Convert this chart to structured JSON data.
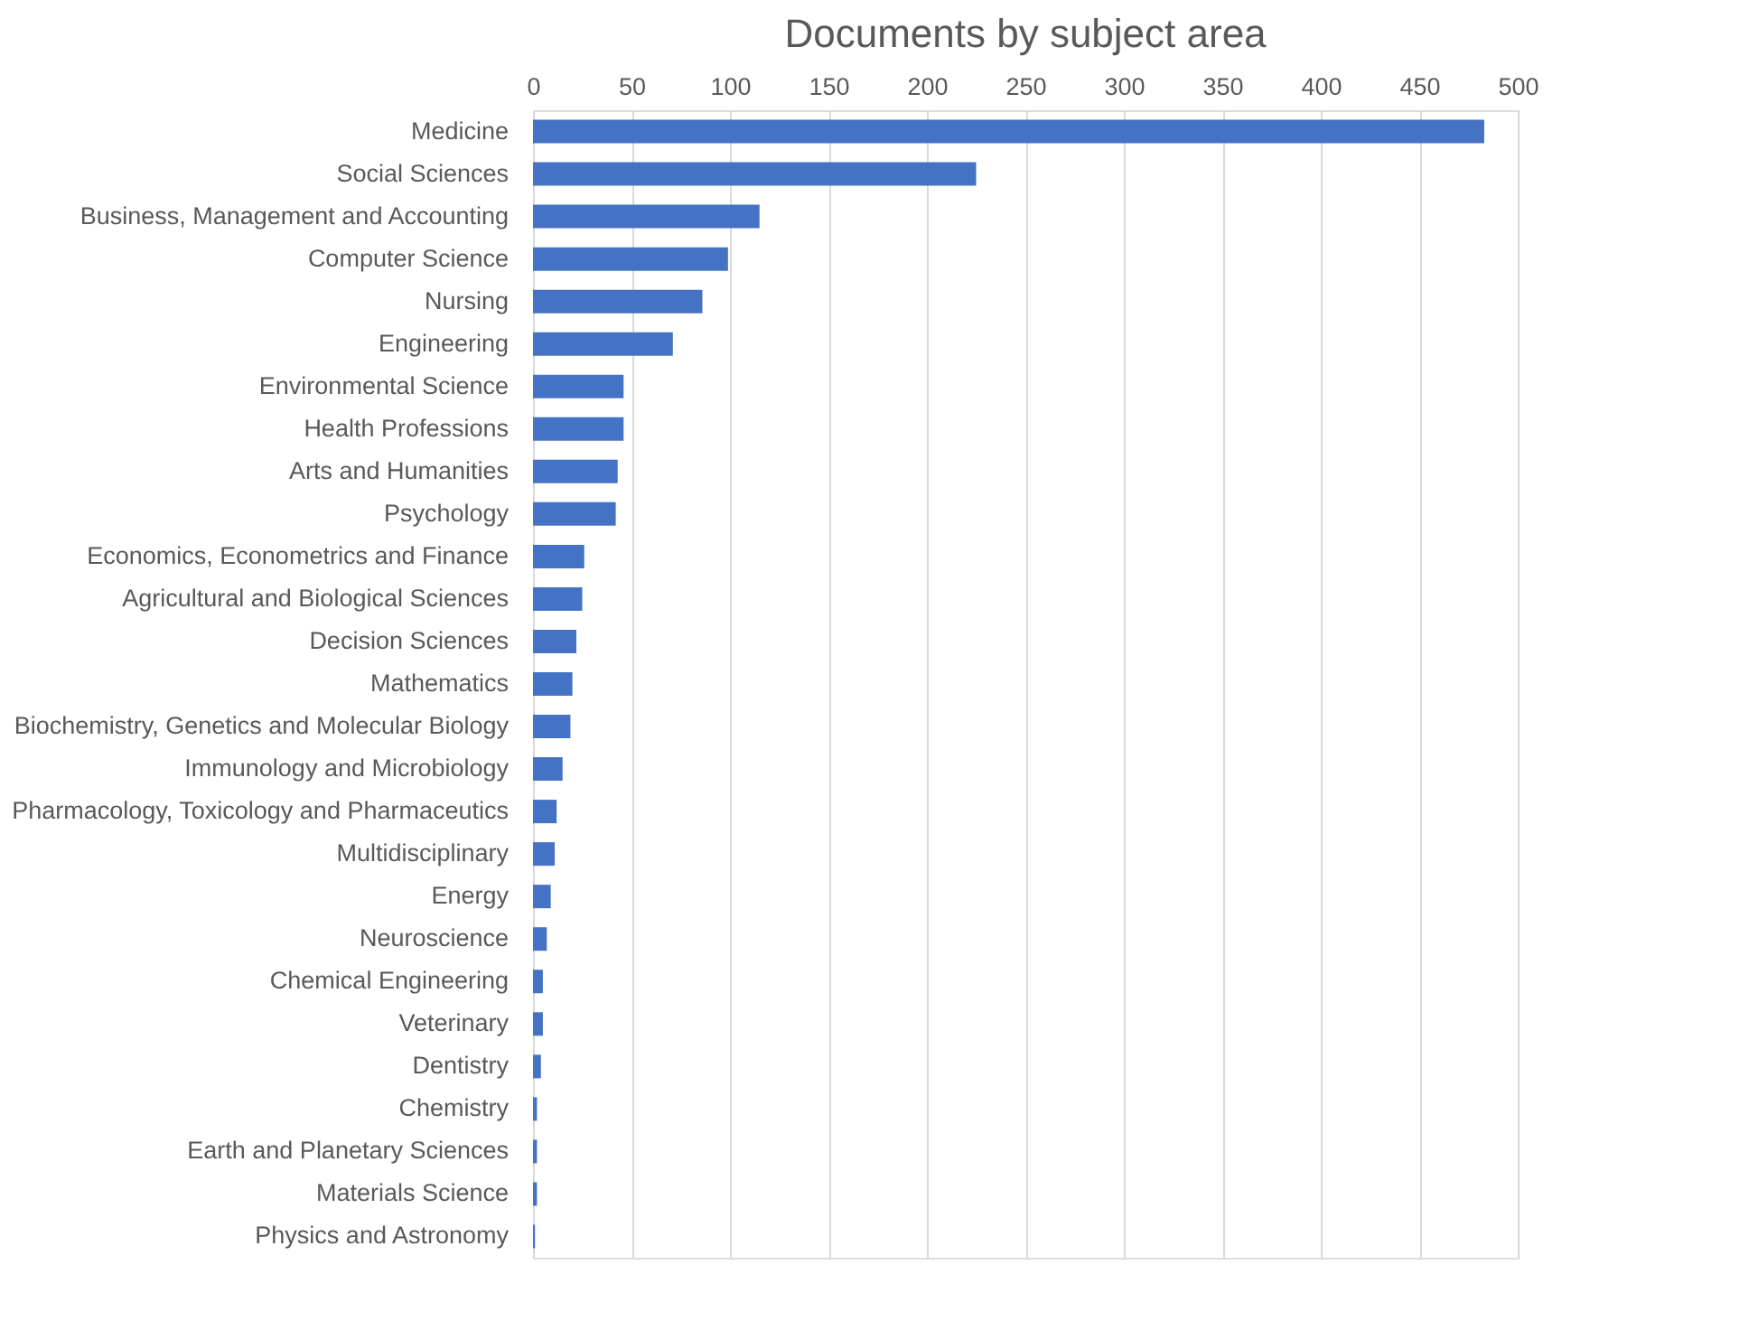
{
  "chart_data": {
    "type": "bar",
    "orientation": "horizontal",
    "title": "Documents by subject area",
    "categories": [
      "Medicine",
      "Social Sciences",
      "Business, Management and Accounting",
      "Computer Science",
      "Nursing",
      "Engineering",
      "Environmental Science",
      "Health Professions",
      "Arts and Humanities",
      "Psychology",
      "Economics, Econometrics and Finance",
      "Agricultural and Biological Sciences",
      "Decision Sciences",
      "Mathematics",
      "Biochemistry, Genetics and Molecular Biology",
      "Immunology and Microbiology",
      "Pharmacology, Toxicology and Pharmaceutics",
      "Multidisciplinary",
      "Energy",
      "Neuroscience",
      "Chemical Engineering",
      "Veterinary",
      "Dentistry",
      "Chemistry",
      "Earth and Planetary Sciences",
      "Materials Science",
      "Physics and Astronomy"
    ],
    "values": [
      483,
      225,
      115,
      99,
      86,
      71,
      46,
      46,
      43,
      42,
      26,
      25,
      22,
      20,
      19,
      15,
      12,
      11,
      9,
      7,
      5,
      5,
      4,
      2,
      2,
      2,
      1
    ],
    "color": "#4472c4",
    "xlim": [
      0,
      500
    ],
    "xticks": [
      0,
      50,
      100,
      150,
      200,
      250,
      300,
      350,
      400,
      450,
      500
    ],
    "grid": "x"
  }
}
